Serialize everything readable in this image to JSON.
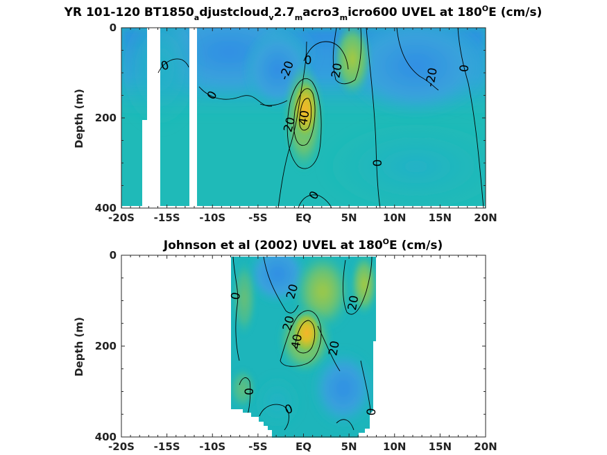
{
  "chart_data": [
    {
      "type": "heatmap",
      "title_parts": [
        {
          "t": "YR 101-120 BT1850",
          "s": "n"
        },
        {
          "t": "a",
          "s": "sub"
        },
        {
          "t": "djustcloud",
          "s": "n"
        },
        {
          "t": "v",
          "s": "sub"
        },
        {
          "t": "2.7",
          "s": "n"
        },
        {
          "t": "m",
          "s": "sub"
        },
        {
          "t": "acro3",
          "s": "n"
        },
        {
          "t": "m",
          "s": "sub"
        },
        {
          "t": "icro600 UVEL at 180",
          "s": "n"
        },
        {
          "t": "O",
          "s": "sup"
        },
        {
          "t": "E (cm/s)",
          "s": "n"
        }
      ],
      "ylabel": "Depth (m)",
      "xlim": [
        -20,
        20
      ],
      "ylim": [
        0,
        400
      ],
      "y_reversed": true,
      "xticks": [
        -20,
        -15,
        -10,
        -5,
        0,
        5,
        10,
        15,
        20
      ],
      "xtick_labels": [
        "-20S",
        "-15S",
        "-10S",
        "-5S",
        "EQ",
        "5N",
        "10N",
        "15N",
        "20N"
      ],
      "yticks": [
        0,
        200,
        400
      ],
      "ytick_labels": [
        "0",
        "200",
        "400"
      ],
      "contour_labels": [
        {
          "text": "0",
          "x": -15.2,
          "y": 85,
          "rot": -20
        },
        {
          "text": "0",
          "x": -10.0,
          "y": 150,
          "rot": -60
        },
        {
          "text": "-20",
          "x": -1.8,
          "y": 95,
          "rot": -70
        },
        {
          "text": "0",
          "x": 0.5,
          "y": 73,
          "rot": 0
        },
        {
          "text": "20",
          "x": 3.7,
          "y": 95,
          "rot": -80
        },
        {
          "text": "-20",
          "x": 14.1,
          "y": 110,
          "rot": -80
        },
        {
          "text": "0",
          "x": 17.7,
          "y": 90,
          "rot": -85
        },
        {
          "text": "20",
          "x": -1.5,
          "y": 215,
          "rot": -75
        },
        {
          "text": "40",
          "x": 0.1,
          "y": 200,
          "rot": -80
        },
        {
          "text": "0",
          "x": 8.2,
          "y": 300,
          "rot": -90
        },
        {
          "text": "0",
          "x": 1.2,
          "y": 372,
          "rot": -60
        }
      ]
    },
    {
      "type": "heatmap",
      "title_parts": [
        {
          "t": "Johnson et al (2002) UVEL at 180",
          "s": "n"
        },
        {
          "t": "O",
          "s": "sup"
        },
        {
          "t": "E (cm/s)",
          "s": "n"
        }
      ],
      "ylabel": "Depth (m)",
      "xlim": [
        -20,
        20
      ],
      "ylim": [
        0,
        400
      ],
      "y_reversed": true,
      "xticks": [
        -20,
        -15,
        -10,
        -5,
        0,
        5,
        10,
        15,
        20
      ],
      "xtick_labels": [
        "-20S",
        "-15S",
        "-10S",
        "-5S",
        "EQ",
        "5N",
        "10N",
        "15N",
        "20N"
      ],
      "yticks": [
        0,
        200,
        400
      ],
      "ytick_labels": [
        "0",
        "200",
        "400"
      ],
      "contour_labels": [
        {
          "text": "0",
          "x": -7.4,
          "y": 90,
          "rot": -80
        },
        {
          "text": "20",
          "x": -1.2,
          "y": 80,
          "rot": -75
        },
        {
          "text": "20",
          "x": 5.5,
          "y": 105,
          "rot": -80
        },
        {
          "text": "20",
          "x": -1.6,
          "y": 150,
          "rot": -75
        },
        {
          "text": "40",
          "x": -0.7,
          "y": 190,
          "rot": -80
        },
        {
          "text": "20",
          "x": 3.4,
          "y": 205,
          "rot": -80
        },
        {
          "text": "0",
          "x": -5.9,
          "y": 300,
          "rot": -90
        },
        {
          "text": "0",
          "x": -1.6,
          "y": 340,
          "rot": -20
        },
        {
          "text": "0",
          "x": 7.5,
          "y": 345,
          "rot": -85
        }
      ]
    }
  ]
}
